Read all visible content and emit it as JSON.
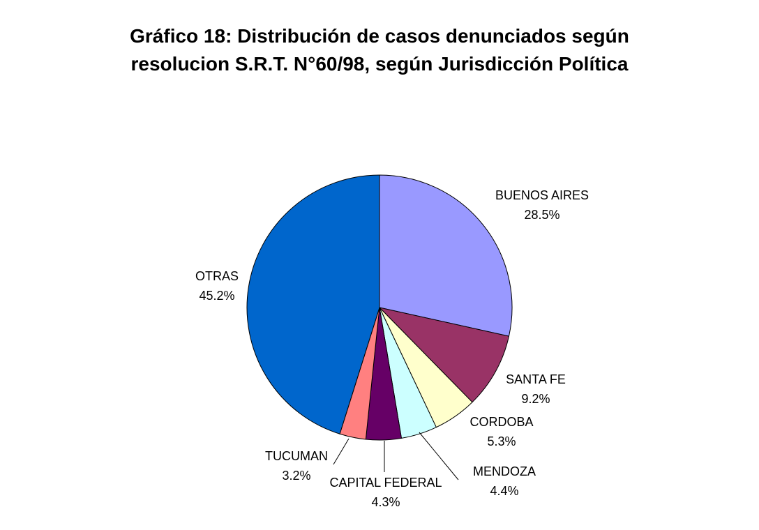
{
  "chart_data": {
    "type": "pie",
    "title_lines": [
      "Gráfico 18: Distribución de casos denunciados según",
      "resolucion S.R.T. N°60/98, según Jurisdicción Política"
    ],
    "slices": [
      {
        "name": "BUENOS AIRES",
        "value": 28.5,
        "label": "28.5%",
        "color": "#9999ff"
      },
      {
        "name": "SANTA FE",
        "value": 9.2,
        "label": "9.2%",
        "color": "#993366"
      },
      {
        "name": "CORDOBA",
        "value": 5.3,
        "label": "5.3%",
        "color": "#ffffcc"
      },
      {
        "name": "MENDOZA",
        "value": 4.4,
        "label": "4.4%",
        "color": "#ccffff"
      },
      {
        "name": "CAPITAL FEDERAL",
        "value": 4.3,
        "label": "4.3%",
        "color": "#660066"
      },
      {
        "name": "TUCUMAN",
        "value": 3.2,
        "label": "3.2%",
        "color": "#ff8080"
      },
      {
        "name": "OTRAS",
        "value": 45.2,
        "label": "45.2%",
        "color": "#0066cc"
      }
    ],
    "start_angle_deg": 0,
    "direction": "clockwise",
    "legend": "none"
  }
}
